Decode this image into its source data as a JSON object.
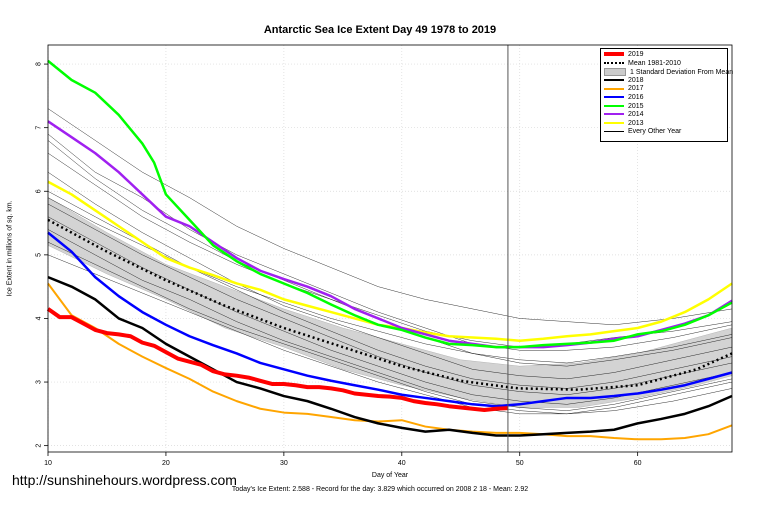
{
  "title": "Antarctic Sea Ice Extent Day 49 1978 to 2019",
  "xlabel": "Day of Year",
  "ylabel": "Ice Extent in millions of sq. km.",
  "watermark": "http://sunshinehours.wordpress.com",
  "footer": "Today's Ice Extent: 2.588  - Record for the day: 3.829 which occurred on 2008 2 18  - Mean: 2.92",
  "colors": {
    "y2019": "#ff0000",
    "mean": "#000000",
    "band": "#cccccc",
    "y2018": "#000000",
    "y2017": "#ffa500",
    "y2016": "#0000ff",
    "y2015": "#00ff00",
    "y2014": "#a020f0",
    "y2013": "#ffff00",
    "other": "#000000"
  },
  "legend": [
    {
      "label": "2019",
      "key": "y2019"
    },
    {
      "label": "Mean 1981-2010",
      "key": "mean"
    },
    {
      "label": "1 Standard Deviation From Mean",
      "key": "band"
    },
    {
      "label": "2018",
      "key": "y2018"
    },
    {
      "label": "2017",
      "key": "y2017"
    },
    {
      "label": "2016",
      "key": "y2016"
    },
    {
      "label": "2015",
      "key": "y2015"
    },
    {
      "label": "2014",
      "key": "y2014"
    },
    {
      "label": "2013",
      "key": "y2013"
    },
    {
      "label": "Every Other Year",
      "key": "other"
    }
  ],
  "chart_data": {
    "type": "line",
    "xlim": [
      10,
      68
    ],
    "ylim": [
      1.9,
      8.3
    ],
    "xticks": [
      10,
      20,
      30,
      40,
      50,
      60
    ],
    "yticks": [
      2,
      3,
      4,
      5,
      6,
      7,
      8
    ],
    "grid": true,
    "vline_day": 49,
    "band": {
      "x": [
        10,
        15,
        20,
        25,
        30,
        35,
        40,
        45,
        50,
        55,
        60,
        65,
        68
      ],
      "upper": [
        5.9,
        5.35,
        4.85,
        4.5,
        4.15,
        3.85,
        3.6,
        3.35,
        3.25,
        3.3,
        3.45,
        3.7,
        3.85
      ],
      "lower": [
        5.15,
        4.7,
        4.3,
        3.85,
        3.55,
        3.2,
        2.95,
        2.75,
        2.6,
        2.6,
        2.75,
        2.95,
        3.1
      ]
    },
    "series": [
      {
        "name": "2019",
        "key": "y2019",
        "width": 4,
        "x": [
          10,
          11,
          12,
          13,
          14,
          15,
          16,
          17,
          18,
          19,
          20,
          21,
          22,
          23,
          24,
          25,
          26,
          27,
          28,
          29,
          30,
          31,
          32,
          33,
          34,
          35,
          36,
          37,
          38,
          39,
          40,
          41,
          42,
          43,
          44,
          45,
          46,
          47,
          48,
          49
        ],
        "y": [
          4.15,
          4.02,
          4.02,
          3.92,
          3.82,
          3.77,
          3.75,
          3.72,
          3.62,
          3.57,
          3.47,
          3.37,
          3.32,
          3.27,
          3.17,
          3.12,
          3.1,
          3.07,
          3.02,
          2.97,
          2.97,
          2.95,
          2.92,
          2.92,
          2.9,
          2.87,
          2.82,
          2.8,
          2.78,
          2.77,
          2.75,
          2.7,
          2.67,
          2.65,
          2.62,
          2.6,
          2.58,
          2.56,
          2.58,
          2.59
        ]
      },
      {
        "name": "Mean 1981-2010",
        "key": "mean",
        "width": 2.5,
        "dash": "2,3",
        "x": [
          10,
          12,
          15,
          20,
          25,
          30,
          35,
          40,
          45,
          49,
          50,
          55,
          60,
          65,
          68
        ],
        "y": [
          5.55,
          5.35,
          5.05,
          4.6,
          4.2,
          3.85,
          3.55,
          3.25,
          3.02,
          2.92,
          2.9,
          2.88,
          2.95,
          3.2,
          3.45
        ]
      },
      {
        "name": "2018",
        "key": "y2018",
        "width": 2.5,
        "x": [
          10,
          12,
          14,
          16,
          18,
          20,
          22,
          24,
          26,
          28,
          30,
          32,
          34,
          36,
          38,
          40,
          42,
          44,
          46,
          48,
          50,
          52,
          54,
          56,
          58,
          60,
          62,
          64,
          66,
          68
        ],
        "y": [
          4.65,
          4.5,
          4.3,
          4.0,
          3.85,
          3.6,
          3.4,
          3.2,
          3.0,
          2.9,
          2.78,
          2.7,
          2.58,
          2.45,
          2.35,
          2.28,
          2.22,
          2.25,
          2.2,
          2.16,
          2.16,
          2.18,
          2.2,
          2.22,
          2.25,
          2.35,
          2.42,
          2.5,
          2.62,
          2.78
        ]
      },
      {
        "name": "2017",
        "key": "y2017",
        "width": 2,
        "x": [
          10,
          12,
          14,
          16,
          18,
          20,
          22,
          24,
          26,
          28,
          30,
          32,
          34,
          36,
          38,
          40,
          42,
          44,
          46,
          48,
          50,
          52,
          54,
          56,
          58,
          60,
          62,
          64,
          66,
          68
        ],
        "y": [
          4.55,
          4.05,
          3.85,
          3.6,
          3.4,
          3.22,
          3.05,
          2.85,
          2.7,
          2.58,
          2.52,
          2.5,
          2.45,
          2.4,
          2.38,
          2.4,
          2.3,
          2.25,
          2.22,
          2.2,
          2.2,
          2.18,
          2.15,
          2.15,
          2.12,
          2.1,
          2.1,
          2.12,
          2.18,
          2.32
        ]
      },
      {
        "name": "2016",
        "key": "y2016",
        "width": 2.5,
        "x": [
          10,
          12,
          14,
          16,
          18,
          20,
          22,
          24,
          26,
          28,
          30,
          32,
          34,
          36,
          38,
          40,
          42,
          44,
          46,
          48,
          50,
          52,
          54,
          56,
          58,
          60,
          62,
          64,
          66,
          68
        ],
        "y": [
          5.35,
          5.05,
          4.65,
          4.35,
          4.1,
          3.9,
          3.72,
          3.58,
          3.45,
          3.3,
          3.2,
          3.1,
          3.02,
          2.95,
          2.88,
          2.8,
          2.75,
          2.7,
          2.65,
          2.62,
          2.65,
          2.7,
          2.75,
          2.75,
          2.78,
          2.82,
          2.88,
          2.95,
          3.05,
          3.15
        ]
      },
      {
        "name": "2015",
        "key": "y2015",
        "width": 2.5,
        "x": [
          10,
          12,
          14,
          16,
          18,
          19,
          20,
          22,
          24,
          26,
          28,
          30,
          32,
          34,
          36,
          38,
          40,
          42,
          44,
          46,
          48,
          50,
          52,
          54,
          56,
          58,
          60,
          62,
          64,
          66,
          68
        ],
        "y": [
          8.05,
          7.75,
          7.55,
          7.2,
          6.75,
          6.45,
          5.95,
          5.55,
          5.15,
          4.9,
          4.7,
          4.55,
          4.4,
          4.22,
          4.05,
          3.9,
          3.82,
          3.7,
          3.6,
          3.58,
          3.55,
          3.55,
          3.58,
          3.6,
          3.62,
          3.65,
          3.75,
          3.8,
          3.9,
          4.05,
          4.25
        ]
      },
      {
        "name": "2014",
        "key": "y2014",
        "width": 2.5,
        "x": [
          10,
          12,
          14,
          16,
          18,
          20,
          22,
          24,
          26,
          28,
          30,
          32,
          34,
          36,
          38,
          40,
          42,
          44,
          46,
          48,
          50,
          52,
          54,
          56,
          58,
          60,
          62,
          64,
          66,
          68
        ],
        "y": [
          7.1,
          6.85,
          6.6,
          6.3,
          5.95,
          5.6,
          5.45,
          5.2,
          4.95,
          4.75,
          4.62,
          4.5,
          4.35,
          4.15,
          4.0,
          3.85,
          3.75,
          3.65,
          3.6,
          3.55,
          3.55,
          3.55,
          3.58,
          3.62,
          3.68,
          3.72,
          3.82,
          3.92,
          4.05,
          4.28
        ]
      },
      {
        "name": "2013",
        "key": "y2013",
        "width": 2.5,
        "x": [
          10,
          12,
          14,
          16,
          18,
          20,
          22,
          24,
          26,
          28,
          30,
          32,
          34,
          36,
          38,
          40,
          42,
          44,
          46,
          48,
          50,
          52,
          54,
          56,
          58,
          60,
          62,
          64,
          66,
          68
        ],
        "y": [
          6.15,
          5.95,
          5.7,
          5.45,
          5.2,
          4.95,
          4.8,
          4.68,
          4.55,
          4.45,
          4.3,
          4.2,
          4.1,
          4.0,
          3.9,
          3.85,
          3.78,
          3.72,
          3.7,
          3.68,
          3.65,
          3.68,
          3.72,
          3.75,
          3.8,
          3.85,
          3.95,
          4.1,
          4.3,
          4.55
        ]
      }
    ],
    "other_years": [
      {
        "y": [
          7.3,
          6.8,
          6.3,
          5.9,
          5.45,
          5.1,
          4.8,
          4.5,
          4.3,
          4.15,
          4.0,
          3.95,
          3.9,
          4.0,
          4.15
        ]
      },
      {
        "y": [
          6.9,
          6.3,
          5.9,
          5.4,
          5.0,
          4.7,
          4.4,
          4.1,
          3.85,
          3.6,
          3.5,
          3.5,
          3.55,
          3.7,
          3.9
        ]
      },
      {
        "y": [
          6.6,
          6.1,
          5.6,
          5.2,
          4.85,
          4.55,
          4.3,
          4.0,
          3.7,
          3.45,
          3.3,
          3.25,
          3.35,
          3.5,
          3.7
        ]
      },
      {
        "y": [
          6.3,
          5.8,
          5.35,
          4.95,
          4.55,
          4.2,
          3.95,
          3.7,
          3.45,
          3.2,
          3.1,
          3.05,
          3.15,
          3.35,
          3.55
        ]
      },
      {
        "y": [
          6.0,
          5.6,
          5.2,
          4.8,
          4.45,
          4.1,
          3.8,
          3.5,
          3.25,
          3.05,
          2.95,
          2.9,
          3.0,
          3.2,
          3.4
        ]
      },
      {
        "y": [
          5.8,
          5.4,
          5.0,
          4.65,
          4.3,
          4.0,
          3.7,
          3.4,
          3.15,
          2.95,
          2.85,
          2.8,
          2.9,
          3.1,
          3.3
        ]
      },
      {
        "y": [
          5.6,
          5.2,
          4.8,
          4.45,
          4.1,
          3.8,
          3.5,
          3.25,
          3.0,
          2.8,
          2.7,
          2.65,
          2.75,
          2.95,
          3.15
        ]
      },
      {
        "y": [
          5.4,
          5.0,
          4.6,
          4.3,
          3.95,
          3.65,
          3.4,
          3.15,
          2.9,
          2.7,
          2.6,
          2.55,
          2.65,
          2.85,
          3.05
        ]
      },
      {
        "y": [
          5.2,
          4.85,
          4.5,
          4.15,
          3.85,
          3.6,
          3.35,
          3.1,
          2.85,
          2.65,
          2.55,
          2.5,
          2.6,
          2.8,
          3.0
        ]
      },
      {
        "y": [
          5.0,
          4.7,
          4.4,
          4.1,
          3.8,
          3.5,
          3.25,
          3.0,
          2.8,
          2.6,
          2.5,
          2.5,
          2.55,
          2.7,
          2.9
        ]
      },
      {
        "y": [
          6.8,
          6.2,
          5.7,
          5.3,
          4.9,
          4.6,
          4.3,
          4.05,
          3.8,
          3.65,
          3.55,
          3.6,
          3.7,
          3.8,
          3.95
        ]
      },
      {
        "y": [
          5.9,
          5.5,
          5.15,
          4.8,
          4.5,
          4.25,
          4.0,
          3.8,
          3.6,
          3.45,
          3.35,
          3.3,
          3.4,
          3.55,
          3.75
        ]
      }
    ],
    "other_x": [
      10,
      14,
      18,
      22,
      26,
      30,
      34,
      38,
      42,
      46,
      50,
      54,
      58,
      63,
      68
    ]
  }
}
